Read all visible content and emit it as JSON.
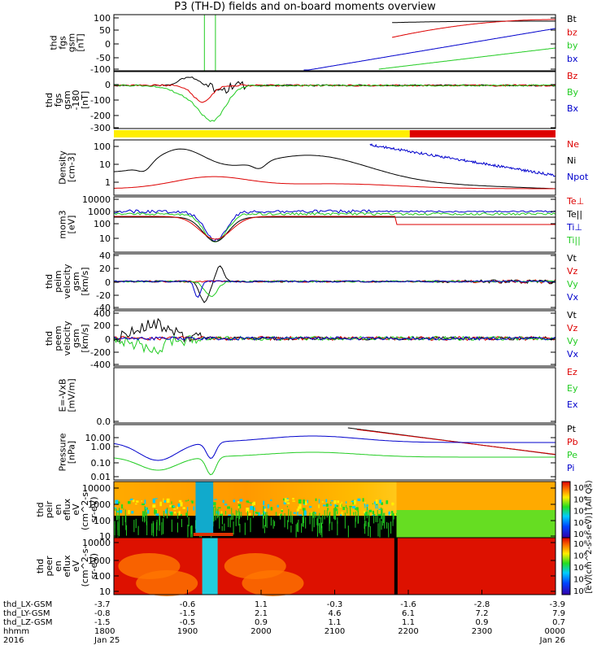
{
  "title": "P3 (TH-D) fields and on-board moments overview",
  "colors": {
    "black": "#000000",
    "red": "#dd0000",
    "green": "#22cc22",
    "blue": "#0000cc",
    "yellow": "#ffee00"
  },
  "chart_data": [
    {
      "type": "line",
      "ylabel": [
        "thd",
        "fgs",
        "gsm",
        "[nT]"
      ],
      "ylim": [
        -100,
        100
      ],
      "yticks": [
        "100",
        "50",
        "0",
        "-50",
        "-100"
      ],
      "legend": [
        {
          "label": "Bt",
          "color": "black"
        },
        {
          "label": "bz",
          "color": "red"
        },
        {
          "label": "by",
          "color": "green"
        },
        {
          "label": "bx",
          "color": "blue"
        }
      ]
    },
    {
      "type": "line",
      "ylabel": [
        "thd",
        "fgs",
        "gsm",
        "-180",
        "[nT]"
      ],
      "ylim": [
        -330,
        50
      ],
      "yticks": [
        "0",
        "-100",
        "-200",
        "-300"
      ],
      "legend": [
        {
          "label": "Bz",
          "color": "red"
        },
        {
          "label": "By",
          "color": "green"
        },
        {
          "label": "Bx",
          "color": "blue"
        }
      ]
    },
    {
      "type": "bar",
      "mode_bar": [
        {
          "from": 0,
          "to": 0.67,
          "color": "yellow"
        },
        {
          "from": 0.67,
          "to": 1,
          "color": "red"
        }
      ]
    },
    {
      "type": "line",
      "ylabel": [
        "Density",
        "[cm-3]"
      ],
      "yscale": "log",
      "yticks": [
        "100",
        "10",
        "1"
      ],
      "legend": [
        {
          "label": "Ne",
          "color": "red"
        },
        {
          "label": "Ni",
          "color": "black"
        },
        {
          "label": "Npot",
          "color": "blue"
        }
      ]
    },
    {
      "type": "line",
      "ylabel": [
        "mom3",
        "[eV]"
      ],
      "yscale": "log",
      "yticks": [
        "10000",
        "1000",
        "100",
        "10"
      ],
      "legend": [
        {
          "label": "Te⊥",
          "color": "red"
        },
        {
          "label": "Te||",
          "color": "black"
        },
        {
          "label": "Ti⊥",
          "color": "blue"
        },
        {
          "label": "Ti||",
          "color": "green"
        }
      ]
    },
    {
      "type": "line",
      "ylabel": [
        "thd",
        "peim",
        "velocity",
        "gsm",
        "[km/s]"
      ],
      "ylim": [
        -40,
        40
      ],
      "yticks": [
        "40",
        "20",
        "0",
        "-20",
        "-40"
      ],
      "legend": [
        {
          "label": "Vt",
          "color": "black"
        },
        {
          "label": "Vz",
          "color": "red"
        },
        {
          "label": "Vy",
          "color": "green"
        },
        {
          "label": "Vx",
          "color": "blue"
        }
      ]
    },
    {
      "type": "line",
      "ylabel": [
        "thd",
        "peem",
        "velocity",
        "gsm",
        "[km/s]"
      ],
      "ylim": [
        -400,
        400
      ],
      "yticks": [
        "400",
        "200",
        "0",
        "-200",
        "-400"
      ],
      "legend": [
        {
          "label": "Vt",
          "color": "black"
        },
        {
          "label": "Vz",
          "color": "red"
        },
        {
          "label": "Vy",
          "color": "green"
        },
        {
          "label": "Vx",
          "color": "blue"
        }
      ]
    },
    {
      "type": "line",
      "ylabel": [
        "E=-VxB",
        "[mV/m]"
      ],
      "yticks": [
        "0.0"
      ],
      "legend": [
        {
          "label": "Ez",
          "color": "red"
        },
        {
          "label": "Ey",
          "color": "green"
        },
        {
          "label": "Ex",
          "color": "blue"
        }
      ]
    },
    {
      "type": "line",
      "ylabel": [
        "Pressure",
        "[nPa]"
      ],
      "yscale": "log",
      "yticks": [
        "10.00",
        "1.00",
        "0.10",
        "0.01"
      ],
      "legend": [
        {
          "label": "Pt",
          "color": "black"
        },
        {
          "label": "Pb",
          "color": "red"
        },
        {
          "label": "Pe",
          "color": "green"
        },
        {
          "label": "Pi",
          "color": "blue"
        }
      ]
    },
    {
      "type": "heatmap",
      "ylabel": [
        "thd",
        "peir",
        "en",
        "eflux",
        "eV",
        "(cm^2-s-",
        "sr-eV)"
      ],
      "yscale": "log",
      "yticks": [
        "10000",
        "1000",
        "100",
        "10"
      ]
    },
    {
      "type": "heatmap",
      "ylabel": [
        "thd",
        "peer",
        "en",
        "eflux",
        "eV",
        "(cm^2-s-",
        "sr-eV)"
      ],
      "yscale": "log",
      "yticks": [
        "10000",
        "1000",
        "100",
        "10"
      ]
    }
  ],
  "colorbar": {
    "upper_ticks": [
      "10⁸",
      "10⁶",
      "10⁴",
      "10²",
      "10⁰"
    ],
    "lower_ticks": [
      "10⁸",
      "10⁶",
      "10⁴",
      "10²",
      "10⁰"
    ],
    "label": "[eV/(cm^2-s-sr-eV)] (All Qs)"
  },
  "xaxis": {
    "rows": [
      {
        "label": "thd_LX-GSM",
        "values": [
          "-3.7",
          "-0.6",
          "1.1",
          "-0.3",
          "-1.6",
          "-2.8",
          "-3.9"
        ]
      },
      {
        "label": "thd_LY-GSM",
        "values": [
          "-0.8",
          "-1.5",
          "2.1",
          "4.6",
          "6.1",
          "7.2",
          "7.9"
        ]
      },
      {
        "label": "thd_LZ-GSM",
        "values": [
          "-1.5",
          "-0.5",
          "0.9",
          "1.1",
          "1.1",
          "0.9",
          "0.7"
        ]
      },
      {
        "label": "hhmm",
        "values": [
          "1800",
          "1900",
          "2000",
          "2100",
          "2200",
          "2300",
          "0000"
        ]
      },
      {
        "label": "2016",
        "values": [
          "Jan 25",
          "",
          "",
          "",
          "",
          "",
          "Jan 26"
        ]
      }
    ]
  }
}
